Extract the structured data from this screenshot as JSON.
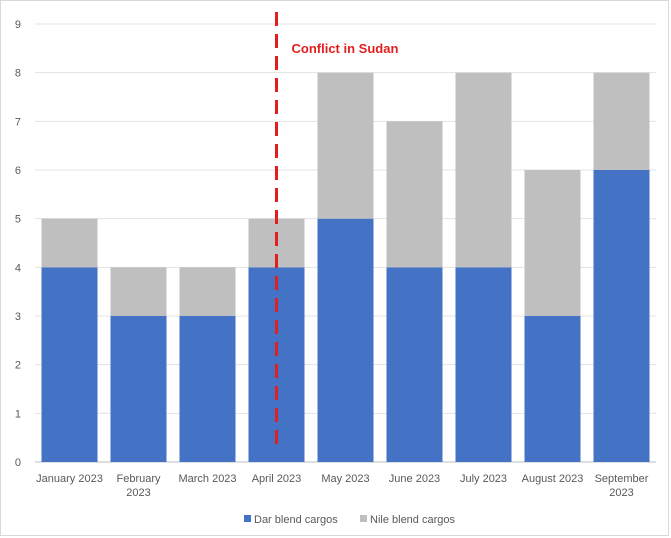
{
  "chart_data": {
    "type": "bar",
    "stacked": true,
    "categories": [
      [
        "January 2023"
      ],
      [
        "February",
        "2023"
      ],
      [
        "March 2023"
      ],
      [
        "April 2023"
      ],
      [
        "May 2023"
      ],
      [
        "June 2023"
      ],
      [
        "July 2023"
      ],
      [
        "August 2023"
      ],
      [
        "September",
        "2023"
      ]
    ],
    "series": [
      {
        "name": "Dar blend cargos",
        "color": "#4472c4",
        "values": [
          4,
          3,
          3,
          4,
          5,
          4,
          4,
          3,
          6
        ]
      },
      {
        "name": "Nile blend cargos",
        "color": "#bfbfbf",
        "values": [
          1,
          1,
          1,
          1,
          3,
          3,
          4,
          3,
          2
        ]
      }
    ],
    "ylim": [
      0,
      9
    ],
    "yticks": [
      0,
      1,
      2,
      3,
      4,
      5,
      6,
      7,
      8,
      9
    ],
    "grid": true,
    "legend_position": "bottom",
    "annotation": {
      "text": "Conflict in Sudan",
      "at_category": "April 2023",
      "color": "#e02020",
      "style": "dashed vertical line"
    }
  }
}
